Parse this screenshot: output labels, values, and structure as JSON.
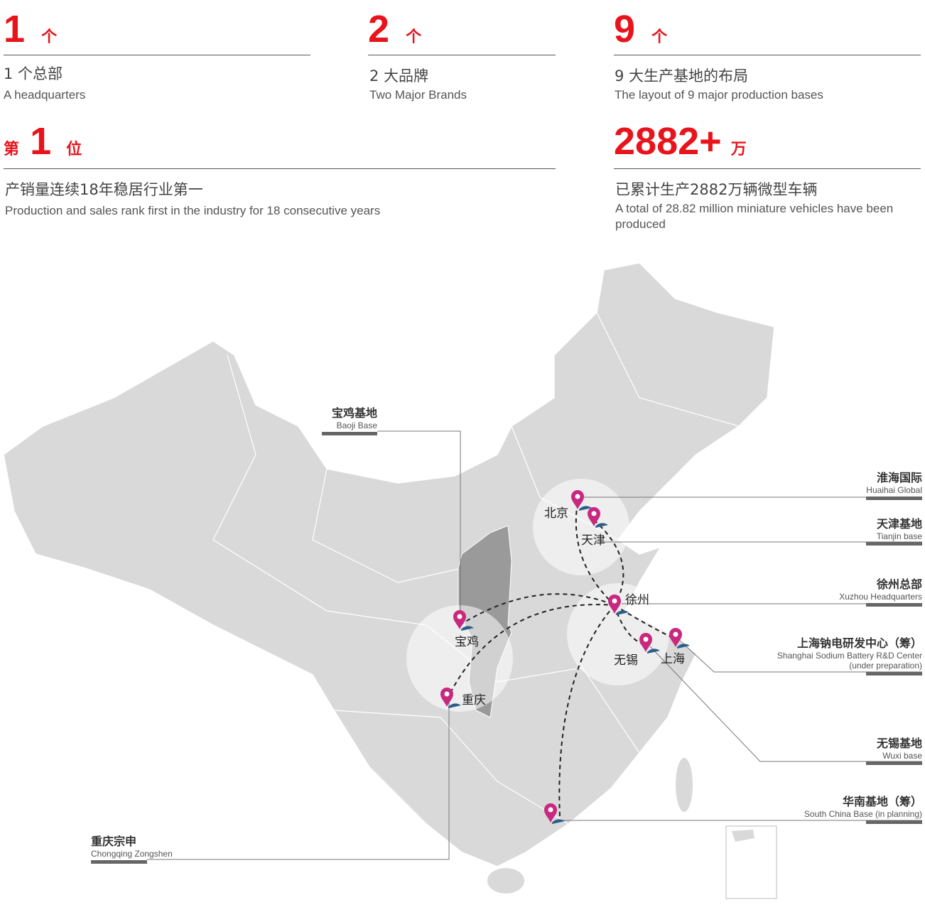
{
  "stats": [
    {
      "number": "1",
      "unit": "个",
      "cn": "1 个总部",
      "en": "A headquarters"
    },
    {
      "number": "2",
      "unit": "个",
      "cn": "2 大品牌",
      "en": "Two Major Brands"
    },
    {
      "number": "9",
      "unit": "个",
      "cn": "9 大生产基地的布局",
      "en": "The layout of 9 major production bases"
    },
    {
      "prefix": "第",
      "number": "1",
      "unit": "位",
      "cn": "产销量连续18年稳居行业第一",
      "en": "Production and sales rank first in the industry for 18 consecutive years"
    },
    {
      "number": "2882+",
      "unit": "万",
      "cn": "已累计生产2882万辆微型车辆",
      "en": "A total of 28.82 million miniature vehicles have been produced"
    }
  ],
  "map": {
    "cities": [
      "北京",
      "天津",
      "徐州",
      "宝鸡",
      "重庆",
      "无锡",
      "上海"
    ],
    "labels": [
      {
        "cn": "宝鸡基地",
        "en": "Baoji Base"
      },
      {
        "cn": "重庆宗申",
        "en": "Chongqing Zongshen"
      },
      {
        "cn": "淮海国际",
        "en": "Huaihai Global"
      },
      {
        "cn": "天津基地",
        "en": "Tianjin base"
      },
      {
        "cn": "徐州总部",
        "en": "Xuzhou Headquarters"
      },
      {
        "cn": "上海钠电研发中心（筹）",
        "en": "Shanghai Sodium Battery R&D Center",
        "en2": "(under preparation)"
      },
      {
        "cn": "无锡基地",
        "en": "Wuxi base"
      },
      {
        "cn": "华南基地（筹）",
        "en": "South China Base (in planning)"
      }
    ],
    "colors": {
      "accent": "#e8141c",
      "marker": "#c8287f",
      "land": "#d9d9d9",
      "highlight": "#9a9a9a",
      "wave": "#2b5d8a"
    }
  }
}
